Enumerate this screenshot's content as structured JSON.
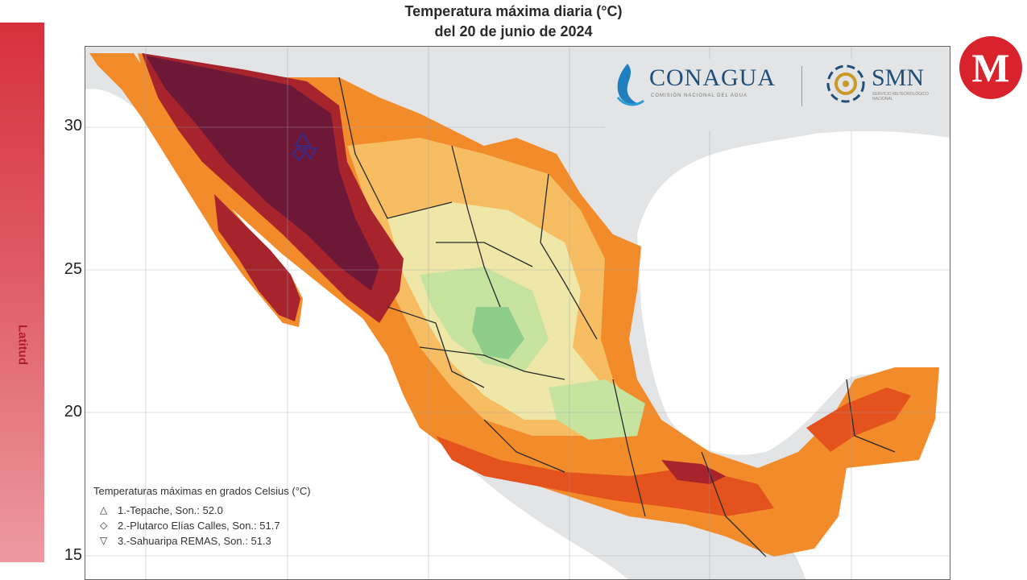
{
  "title_line1": "Temperatura máxima diaria (°C)",
  "title_line2": "del 20 de junio de 2024",
  "side_label": "Latitud",
  "y_ticks": [
    "30",
    "25",
    "20",
    "15"
  ],
  "logos": {
    "conagua": "CONAGUA",
    "conagua_sub": "COMISIÓN NACIONAL DEL AGUA",
    "smn": "SMN",
    "smn_sub": "SERVICIO METEOROLÓGICO NACIONAL",
    "milenio": "M"
  },
  "legend": {
    "title": "Temperaturas máximas en grados Celsius (°C)",
    "items": [
      {
        "symbol": "△",
        "label": "1.-Tepache, Son.: 52.0",
        "marker": "triangle-up-icon"
      },
      {
        "symbol": "◇",
        "label": "2.-Plutarco Elías Calles, Son.: 51.7",
        "marker": "diamond-icon"
      },
      {
        "symbol": "▽",
        "label": "3.-Sahuaripa REMAS, Son.: 51.3",
        "marker": "triangle-down-icon"
      }
    ]
  },
  "colors": {
    "ocean": "#ffffff",
    "land_outside": "#e3e4e5",
    "extreme": "#6e1838",
    "very_hot": "#a8242c",
    "hot": "#e4521d",
    "warm": "#f28c2b",
    "mild": "#f6bd63",
    "cool": "#eee7a8",
    "cooler": "#c7e3a0",
    "coolest": "#8fcd8a",
    "accent_red": "#d6313d",
    "brand_blue": "#1f4f7a"
  }
}
